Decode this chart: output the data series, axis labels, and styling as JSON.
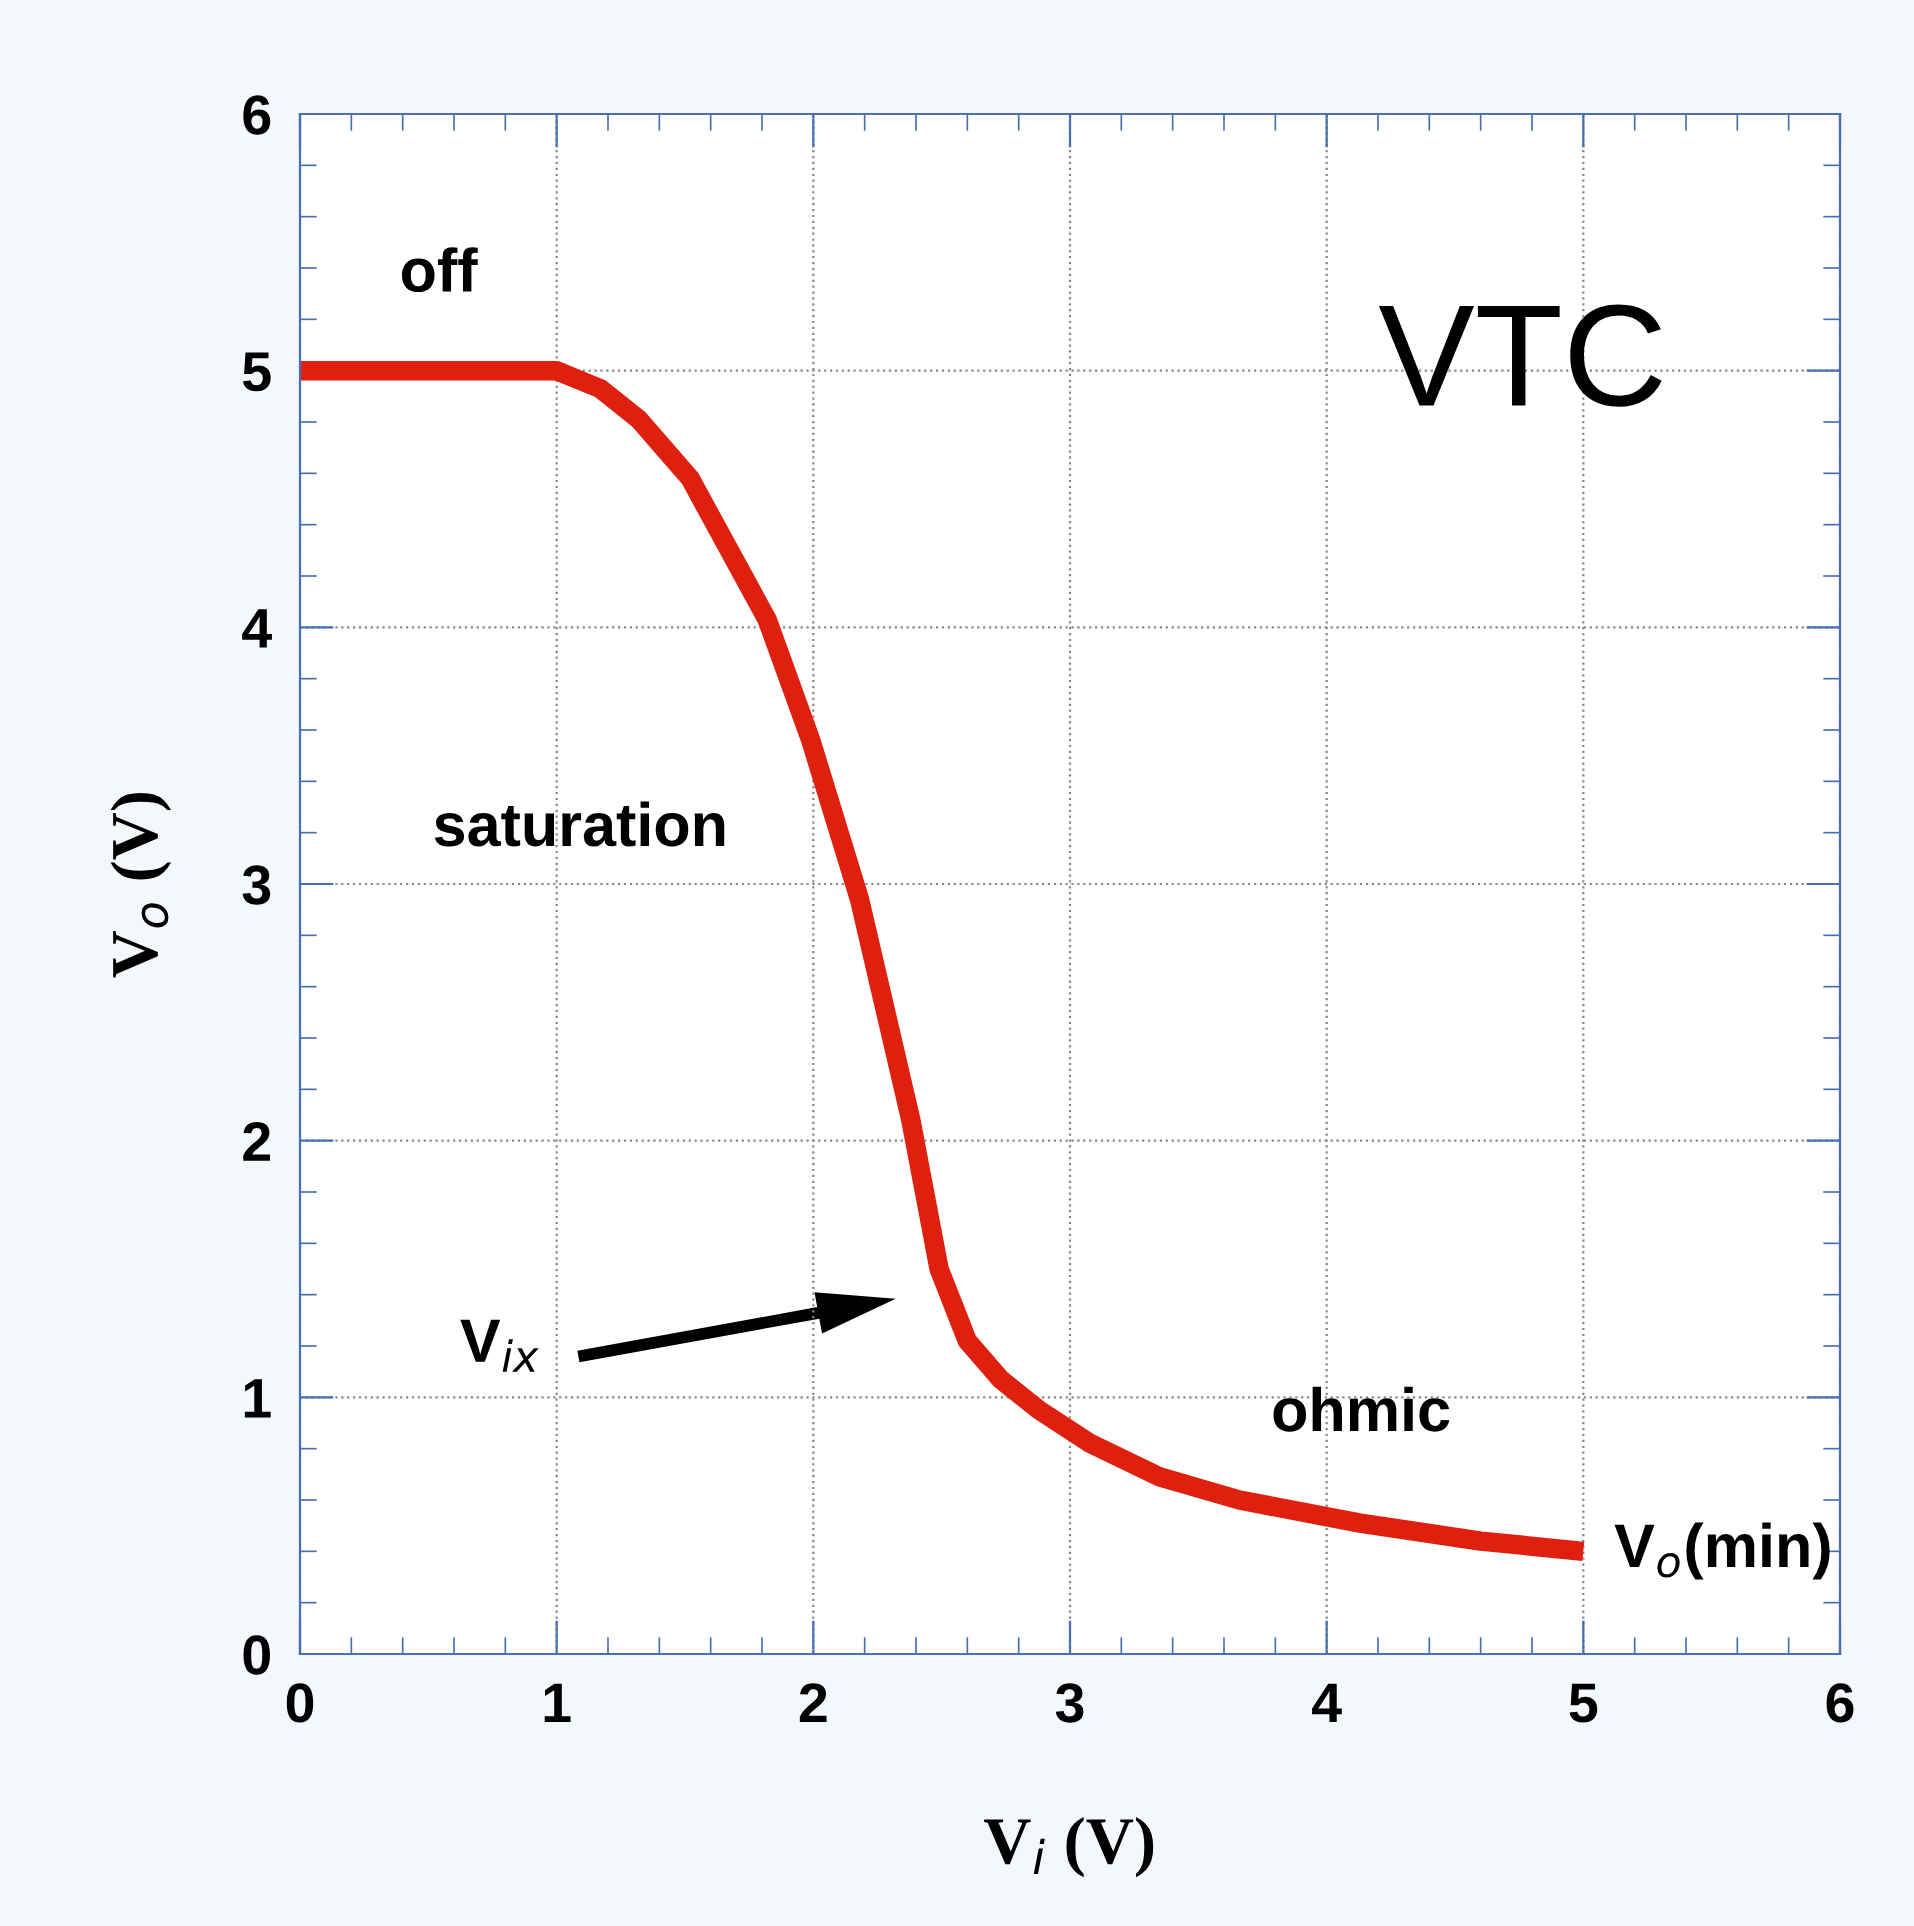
{
  "chart_data": {
    "type": "line",
    "xlabel": "V$_{i}$ (V)",
    "ylabel": "V$_{o}$ (V)",
    "x": [
      0,
      1,
      1.17,
      1.32,
      1.52,
      1.82,
      1.99,
      2.18,
      2.38,
      2.49,
      2.6,
      2.73,
      2.88,
      3.08,
      3.35,
      3.66,
      4.13,
      4.6,
      5.0
    ],
    "series": [
      {
        "color": "#e0200f",
        "values": [
          5,
          5,
          4.93,
          4.81,
          4.58,
          4.03,
          3.56,
          2.94,
          2.08,
          1.5,
          1.22,
          1.07,
          0.95,
          0.82,
          0.69,
          0.6,
          0.51,
          0.44,
          0.4
        ]
      }
    ],
    "xlim": [
      0,
      6
    ],
    "ylim": [
      0,
      6
    ],
    "xticks": [
      0,
      1,
      2,
      3,
      4,
      5,
      6
    ],
    "yticks": [
      0,
      1,
      2,
      3,
      4,
      5,
      6
    ],
    "grid": true,
    "legend": false,
    "marker": "none",
    "line_style": "solid",
    "annotations": [
      "VTC",
      "off",
      "saturation",
      "ohmic",
      "V$_{ix}$",
      {
        "text": "V$_{o}$(min)",
        "x": 5.0,
        "y": 0.4
      }
    ]
  }
}
